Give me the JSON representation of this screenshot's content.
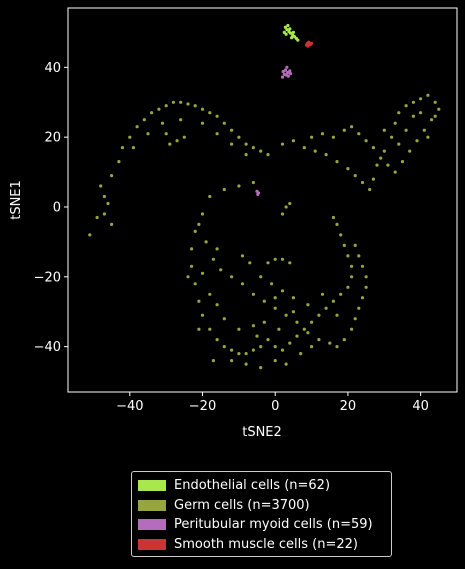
{
  "chart_data": {
    "type": "scatter",
    "title": "",
    "xlabel": "tSNE2",
    "ylabel": "tSNE1",
    "xlim": [
      -57,
      50
    ],
    "ylim": [
      -53,
      57
    ],
    "xticks": [
      -40,
      -20,
      0,
      20,
      40
    ],
    "yticks": [
      -40,
      -20,
      0,
      20,
      40
    ],
    "xtick_labels": [
      "−40",
      "−20",
      "0",
      "20",
      "40"
    ],
    "ytick_labels": [
      "−40",
      "−20",
      "0",
      "20",
      "40"
    ],
    "grid": false,
    "legend_position": "below",
    "background": "#000000",
    "series": [
      {
        "name": "Endothelial cells (n=62)",
        "color": "#a8e84a",
        "points": [
          [
            2.8,
            51.5
          ],
          [
            3.2,
            50.8
          ],
          [
            3.8,
            50.2
          ],
          [
            4.2,
            49.8
          ],
          [
            4.8,
            49.2
          ],
          [
            5.3,
            48.8
          ],
          [
            3.0,
            49.5
          ],
          [
            4.0,
            51.0
          ],
          [
            5.8,
            48.3
          ],
          [
            2.5,
            50.0
          ],
          [
            6.2,
            47.8
          ],
          [
            3.5,
            52.0
          ],
          [
            4.5,
            48.5
          ],
          [
            5.0,
            50.0
          ]
        ]
      },
      {
        "name": "Germ cells (n=3700)",
        "color": "#97a63c",
        "points": [
          [
            -51,
            -8
          ],
          [
            -49,
            -3
          ],
          [
            -47,
            3
          ],
          [
            -45,
            9
          ],
          [
            -43,
            13
          ],
          [
            -42,
            17
          ],
          [
            -40,
            20
          ],
          [
            -38,
            23
          ],
          [
            -36,
            25
          ],
          [
            -34,
            27
          ],
          [
            -32,
            28
          ],
          [
            -30,
            29
          ],
          [
            -28,
            30
          ],
          [
            -26,
            30
          ],
          [
            -24,
            29.5
          ],
          [
            -22,
            29
          ],
          [
            -20,
            28
          ],
          [
            -18,
            27
          ],
          [
            -16,
            26
          ],
          [
            -14,
            24
          ],
          [
            -12,
            22
          ],
          [
            -10,
            20
          ],
          [
            -8,
            18
          ],
          [
            -6,
            17
          ],
          [
            -4,
            16
          ],
          [
            -2,
            15
          ],
          [
            -46,
            1
          ],
          [
            -47,
            -2
          ],
          [
            -48,
            6
          ],
          [
            -45,
            -5
          ],
          [
            -39,
            17
          ],
          [
            -35,
            21
          ],
          [
            -31,
            24
          ],
          [
            -27,
            19
          ],
          [
            -29,
            18
          ],
          [
            -25,
            20
          ],
          [
            -30,
            21
          ],
          [
            -26,
            25
          ],
          [
            -20,
            24
          ],
          [
            -16,
            21
          ],
          [
            -12,
            18
          ],
          [
            -8,
            15
          ],
          [
            2,
            18
          ],
          [
            5,
            19
          ],
          [
            8,
            17
          ],
          [
            11,
            16
          ],
          [
            14,
            15
          ],
          [
            17,
            13
          ],
          [
            20,
            11
          ],
          [
            22,
            9
          ],
          [
            24,
            7
          ],
          [
            26,
            5
          ],
          [
            27,
            8
          ],
          [
            28,
            12
          ],
          [
            30,
            16
          ],
          [
            32,
            20
          ],
          [
            33,
            24
          ],
          [
            34,
            27
          ],
          [
            36,
            29
          ],
          [
            38,
            30
          ],
          [
            40,
            31
          ],
          [
            42,
            32
          ],
          [
            44,
            30
          ],
          [
            45,
            28
          ],
          [
            43,
            25
          ],
          [
            41,
            22
          ],
          [
            39,
            19
          ],
          [
            37,
            16
          ],
          [
            35,
            13
          ],
          [
            33,
            10
          ],
          [
            31,
            12
          ],
          [
            29,
            14
          ],
          [
            27,
            17
          ],
          [
            25,
            19
          ],
          [
            23,
            21
          ],
          [
            21,
            23
          ],
          [
            19,
            22
          ],
          [
            16,
            20
          ],
          [
            13,
            21
          ],
          [
            10,
            20
          ],
          [
            38,
            26
          ],
          [
            36,
            22
          ],
          [
            40,
            27
          ],
          [
            44,
            26
          ],
          [
            42,
            20
          ],
          [
            30,
            22
          ],
          [
            34,
            18
          ],
          [
            -6,
            7
          ],
          [
            -10,
            6
          ],
          [
            -14,
            5
          ],
          [
            -18,
            3
          ],
          [
            -20,
            -2
          ],
          [
            -22,
            -7
          ],
          [
            -23,
            -12
          ],
          [
            -23,
            -17
          ],
          [
            -22,
            -22
          ],
          [
            -21,
            -27
          ],
          [
            -20,
            -31
          ],
          [
            -18,
            -35
          ],
          [
            -16,
            -38
          ],
          [
            -14,
            -40
          ],
          [
            -12,
            -41
          ],
          [
            -10,
            -42
          ],
          [
            -8,
            -42
          ],
          [
            -6,
            -41
          ],
          [
            -4,
            -40
          ],
          [
            -2,
            -38
          ],
          [
            0,
            -40
          ],
          [
            2,
            -41
          ],
          [
            4,
            -39
          ],
          [
            6,
            -37
          ],
          [
            8,
            -35
          ],
          [
            10,
            -33
          ],
          [
            12,
            -31
          ],
          [
            14,
            -29
          ],
          [
            16,
            -27
          ],
          [
            18,
            -25
          ],
          [
            20,
            -23
          ],
          [
            21,
            -20
          ],
          [
            21,
            -17
          ],
          [
            20,
            -14
          ],
          [
            19,
            -11
          ],
          [
            18,
            -8
          ],
          [
            17,
            -5
          ],
          [
            16,
            -3
          ],
          [
            -21,
            -5
          ],
          [
            -19,
            -10
          ],
          [
            -17,
            -15
          ],
          [
            -15,
            -18
          ],
          [
            -12,
            -20
          ],
          [
            -9,
            -22
          ],
          [
            -6,
            -25
          ],
          [
            -3,
            -27
          ],
          [
            0,
            -29
          ],
          [
            3,
            -31
          ],
          [
            6,
            -33
          ],
          [
            9,
            -36
          ],
          [
            12,
            -38
          ],
          [
            15,
            -39
          ],
          [
            17,
            -40
          ],
          [
            19,
            -38
          ],
          [
            21,
            -35
          ],
          [
            22,
            -32
          ],
          [
            23,
            -29
          ],
          [
            24,
            -26
          ],
          [
            25,
            -23
          ],
          [
            25,
            -20
          ],
          [
            24,
            -17
          ],
          [
            23,
            -14
          ],
          [
            22,
            -11
          ],
          [
            -18,
            -25
          ],
          [
            -16,
            -28
          ],
          [
            -14,
            -32
          ],
          [
            -10,
            -35
          ],
          [
            -6,
            -34
          ],
          [
            -3,
            -33
          ],
          [
            1,
            -35
          ],
          [
            5,
            -30
          ],
          [
            9,
            -28
          ],
          [
            13,
            -25
          ],
          [
            17,
            -31
          ],
          [
            -2,
            -16
          ],
          [
            0,
            -15
          ],
          [
            2,
            -15
          ],
          [
            4,
            -16
          ],
          [
            -9,
            -14
          ],
          [
            -7,
            -16
          ],
          [
            -4,
            -20
          ],
          [
            -1,
            -22
          ],
          [
            2,
            -24
          ],
          [
            5,
            -26
          ],
          [
            0,
            -26
          ],
          [
            -20,
            -19
          ],
          [
            -16,
            -12
          ],
          [
            2,
            -2
          ],
          [
            3,
            0
          ],
          [
            4,
            1
          ],
          [
            -5,
            -37
          ],
          [
            -8,
            -45
          ],
          [
            -4,
            -46
          ],
          [
            0,
            -44
          ],
          [
            3,
            -45
          ],
          [
            -12,
            -44
          ],
          [
            7,
            -42
          ],
          [
            10,
            -40
          ],
          [
            -24,
            -20
          ],
          [
            -21,
            -35
          ],
          [
            -17,
            -44
          ]
        ]
      },
      {
        "name": "Peritubular myoid cells (n=59)",
        "color": "#b56cbc",
        "points": [
          [
            2.2,
            38.8
          ],
          [
            2.8,
            39.2
          ],
          [
            3.4,
            38.5
          ],
          [
            4.0,
            39.0
          ],
          [
            3.0,
            37.8
          ],
          [
            3.6,
            37.5
          ],
          [
            2.5,
            38.0
          ],
          [
            4.2,
            38.2
          ],
          [
            3.2,
            40.0
          ],
          [
            2.0,
            37.2
          ],
          [
            -5.0,
            4.5
          ],
          [
            -4.6,
            4.0
          ],
          [
            -4.8,
            3.6
          ]
        ]
      },
      {
        "name": "Smooth muscle cells (n=22)",
        "color": "#cc3333",
        "points": [
          [
            8.8,
            46.8
          ],
          [
            9.2,
            47.2
          ],
          [
            9.6,
            46.5
          ],
          [
            10.0,
            46.9
          ],
          [
            9.0,
            46.1
          ],
          [
            8.6,
            46.4
          ]
        ]
      }
    ]
  }
}
